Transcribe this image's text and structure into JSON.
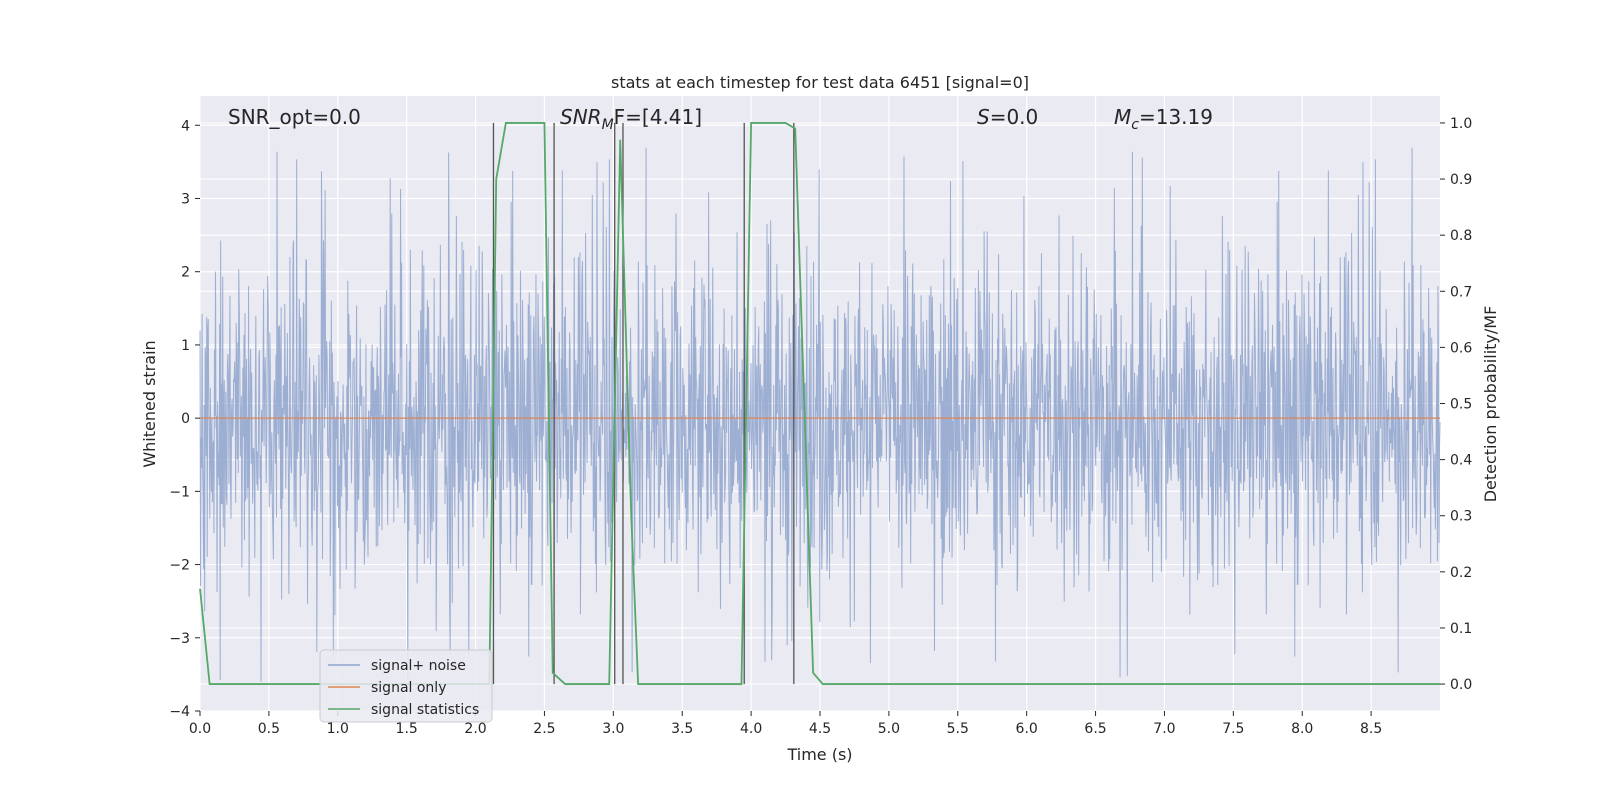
{
  "chart_data": {
    "type": "line",
    "title": "stats at each timestep for test data 6451 [signal=0]",
    "xlabel": "Time (s)",
    "ylabel": "Whitened strain",
    "y2label": "Detection probability/MF",
    "xlim": [
      0.0,
      9.0
    ],
    "ylim": [
      -4.0,
      4.4
    ],
    "y2lim": [
      -0.048,
      1.048
    ],
    "xticks": [
      "0.0",
      "0.5",
      "1.0",
      "1.5",
      "2.0",
      "2.5",
      "3.0",
      "3.5",
      "4.0",
      "4.5",
      "5.0",
      "5.5",
      "6.0",
      "6.5",
      "7.0",
      "7.5",
      "8.0",
      "8.5"
    ],
    "yticks": [
      "4",
      "3",
      "2",
      "1",
      "0",
      "−1",
      "−2",
      "−3",
      "−4"
    ],
    "y2ticks": [
      "1.0",
      "0.9",
      "0.8",
      "0.7",
      "0.6",
      "0.5",
      "0.4",
      "0.3",
      "0.2",
      "0.1",
      "0.0"
    ],
    "grid": true,
    "legend_position": "lower-left",
    "annotations": {
      "snr_opt": "SNR_opt=0.0",
      "snr_mf_main": "SNR",
      "snr_mf_sub": "M",
      "snr_mf_rest": "F=[4.41]",
      "s_main": "S",
      "s_rest": "=0.0",
      "mc_main": "M",
      "mc_sub": "c",
      "mc_rest": "=13.19"
    },
    "series": [
      {
        "name": "signal+ noise",
        "color": "#8ea3cc",
        "description_shape": "white-noise band roughly within -2.5 to 3.5 with spikes up to about 4",
        "typical_range": [
          -3.6,
          4.0
        ],
        "samples": 8192
      },
      {
        "name": "signal only",
        "color": "#dd8452",
        "x": [
          0.0,
          9.0
        ],
        "y": [
          0.0,
          0.0
        ]
      },
      {
        "name": "signal statistics",
        "color": "#55a868",
        "axis": "right",
        "x": [
          0.0,
          0.07,
          0.12,
          2.1,
          2.15,
          2.22,
          2.5,
          2.56,
          2.65,
          2.7,
          2.97,
          3.05,
          3.13,
          3.18,
          3.93,
          4.0,
          4.25,
          4.32,
          4.45,
          4.52,
          9.0
        ],
        "y": [
          0.17,
          0.0,
          0.0,
          0.0,
          0.9,
          1.0,
          1.0,
          0.02,
          0.0,
          0.0,
          0.0,
          0.97,
          0.3,
          0.0,
          0.0,
          1.0,
          1.0,
          0.99,
          0.02,
          0.0,
          0.0
        ]
      }
    ],
    "vertical_markers": [
      2.13,
      2.57,
      3.01,
      3.07,
      3.95,
      4.31
    ]
  }
}
